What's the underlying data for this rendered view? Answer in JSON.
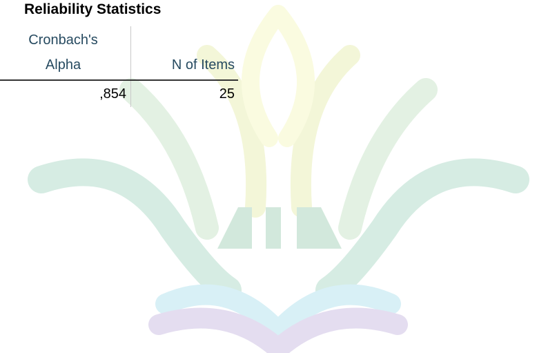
{
  "table": {
    "title": "Reliability Statistics",
    "headers": [
      "Cronbach's Alpha",
      "N of Items"
    ],
    "rows": [
      [
        ",854",
        "25"
      ]
    ]
  }
}
